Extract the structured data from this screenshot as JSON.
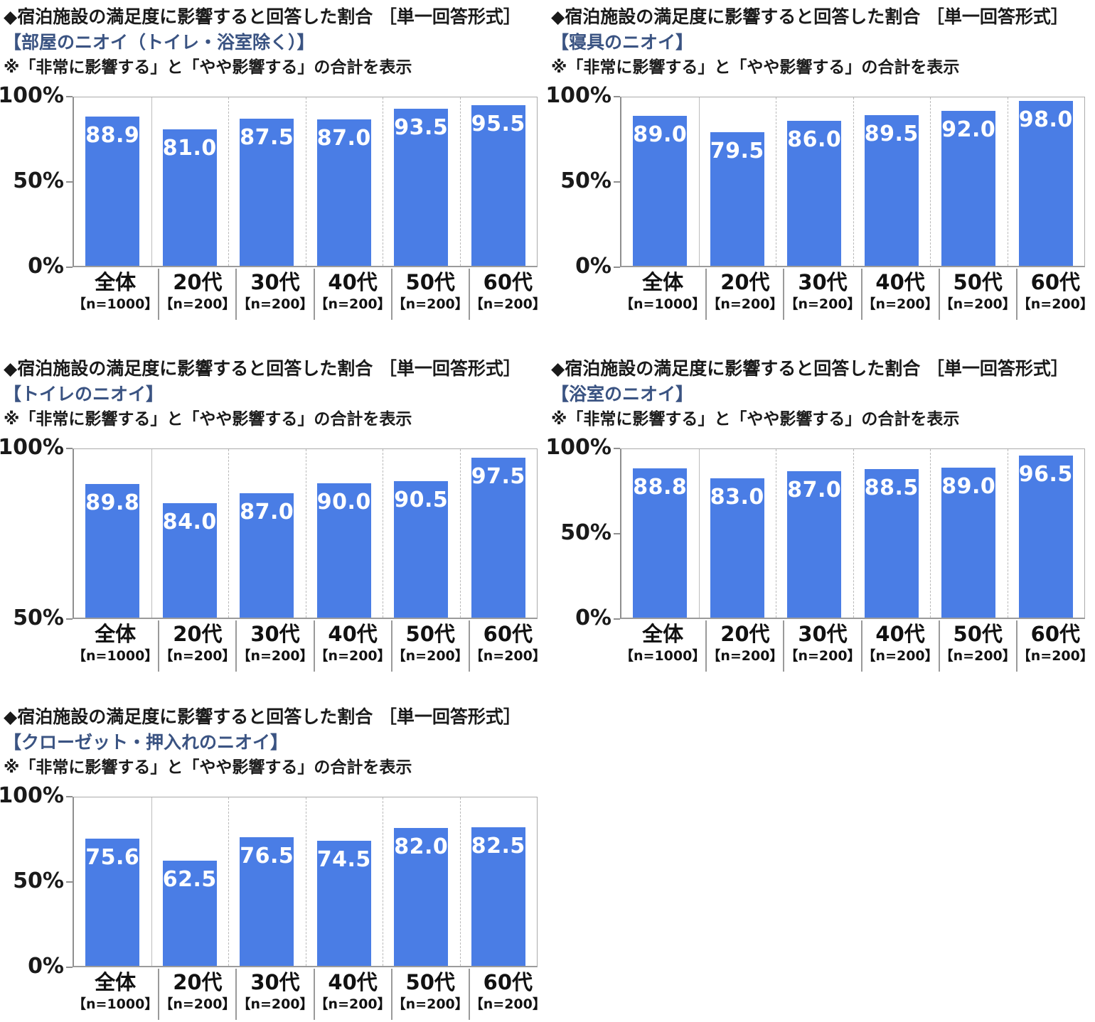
{
  "page": {
    "background": "#ffffff"
  },
  "colors": {
    "bar": "#4a7de5",
    "subtitle": "#3a5382",
    "axis": "#8f8f8f",
    "grid_dashed": "#b9b9b9",
    "value_label": "#ffffff",
    "text": "#1a1a1a"
  },
  "chart_data": [
    {
      "type": "bar",
      "title": "◆宿泊施設の満足度に影響すると回答した割合 ［単一回答形式］",
      "subtitle": "【部屋のニオイ（トイレ・浴室除く）】",
      "note": "※「非常に影響する」と「やや影響する」の合計を表示",
      "categories": [
        {
          "label": "全体",
          "n": "【n=1000】"
        },
        {
          "label": "20代",
          "n": "【n=200】"
        },
        {
          "label": "30代",
          "n": "【n=200】"
        },
        {
          "label": "40代",
          "n": "【n=200】"
        },
        {
          "label": "50代",
          "n": "【n=200】"
        },
        {
          "label": "60代",
          "n": "【n=200】"
        }
      ],
      "values": [
        88.9,
        81.0,
        87.5,
        87.0,
        93.5,
        95.5
      ],
      "ylim": [
        0,
        100
      ],
      "yticks": [
        {
          "value": 100,
          "label": "100%"
        },
        {
          "value": 50,
          "label": "50%"
        },
        {
          "value": 0,
          "label": "0%"
        }
      ],
      "grid": "vertical-dashed",
      "legend": "none"
    },
    {
      "type": "bar",
      "title": "◆宿泊施設の満足度に影響すると回答した割合 ［単一回答形式］",
      "subtitle": "【寝具のニオイ】",
      "note": "※「非常に影響する」と「やや影響する」の合計を表示",
      "categories": [
        {
          "label": "全体",
          "n": "【n=1000】"
        },
        {
          "label": "20代",
          "n": "【n=200】"
        },
        {
          "label": "30代",
          "n": "【n=200】"
        },
        {
          "label": "40代",
          "n": "【n=200】"
        },
        {
          "label": "50代",
          "n": "【n=200】"
        },
        {
          "label": "60代",
          "n": "【n=200】"
        }
      ],
      "values": [
        89.0,
        79.5,
        86.0,
        89.5,
        92.0,
        98.0
      ],
      "ylim": [
        0,
        100
      ],
      "yticks": [
        {
          "value": 100,
          "label": "100%"
        },
        {
          "value": 50,
          "label": "50%"
        },
        {
          "value": 0,
          "label": "0%"
        }
      ],
      "grid": "vertical-dashed",
      "legend": "none"
    },
    {
      "type": "bar",
      "title": "◆宿泊施設の満足度に影響すると回答した割合 ［単一回答形式］",
      "subtitle": "【トイレのニオイ】",
      "note": "※「非常に影響する」と「やや影響する」の合計を表示",
      "categories": [
        {
          "label": "全体",
          "n": "【n=1000】"
        },
        {
          "label": "20代",
          "n": "【n=200】"
        },
        {
          "label": "30代",
          "n": "【n=200】"
        },
        {
          "label": "40代",
          "n": "【n=200】"
        },
        {
          "label": "50代",
          "n": "【n=200】"
        },
        {
          "label": "60代",
          "n": "【n=200】"
        }
      ],
      "values": [
        89.8,
        84.0,
        87.0,
        90.0,
        90.5,
        97.5
      ],
      "ylim": [
        50,
        100
      ],
      "yticks": [
        {
          "value": 100,
          "label": "100%"
        },
        {
          "value": 50,
          "label": "50%"
        }
      ],
      "grid": "vertical-dashed",
      "legend": "none"
    },
    {
      "type": "bar",
      "title": "◆宿泊施設の満足度に影響すると回答した割合 ［単一回答形式］",
      "subtitle": "【浴室のニオイ】",
      "note": "※「非常に影響する」と「やや影響する」の合計を表示",
      "categories": [
        {
          "label": "全体",
          "n": "【n=1000】"
        },
        {
          "label": "20代",
          "n": "【n=200】"
        },
        {
          "label": "30代",
          "n": "【n=200】"
        },
        {
          "label": "40代",
          "n": "【n=200】"
        },
        {
          "label": "50代",
          "n": "【n=200】"
        },
        {
          "label": "60代",
          "n": "【n=200】"
        }
      ],
      "values": [
        88.8,
        83.0,
        87.0,
        88.5,
        89.0,
        96.5
      ],
      "ylim": [
        0,
        100
      ],
      "yticks": [
        {
          "value": 100,
          "label": "100%"
        },
        {
          "value": 50,
          "label": "50%"
        },
        {
          "value": 0,
          "label": "0%"
        }
      ],
      "grid": "vertical-dashed",
      "legend": "none"
    },
    {
      "type": "bar",
      "title": "◆宿泊施設の満足度に影響すると回答した割合 ［単一回答形式］",
      "subtitle": "【クローゼット・押入れのニオイ】",
      "note": "※「非常に影響する」と「やや影響する」の合計を表示",
      "categories": [
        {
          "label": "全体",
          "n": "【n=1000】"
        },
        {
          "label": "20代",
          "n": "【n=200】"
        },
        {
          "label": "30代",
          "n": "【n=200】"
        },
        {
          "label": "40代",
          "n": "【n=200】"
        },
        {
          "label": "50代",
          "n": "【n=200】"
        },
        {
          "label": "60代",
          "n": "【n=200】"
        }
      ],
      "values": [
        75.6,
        62.5,
        76.5,
        74.5,
        82.0,
        82.5
      ],
      "ylim": [
        0,
        100
      ],
      "yticks": [
        {
          "value": 100,
          "label": "100%"
        },
        {
          "value": 50,
          "label": "50%"
        },
        {
          "value": 0,
          "label": "0%"
        }
      ],
      "grid": "vertical-dashed",
      "legend": "none"
    }
  ]
}
